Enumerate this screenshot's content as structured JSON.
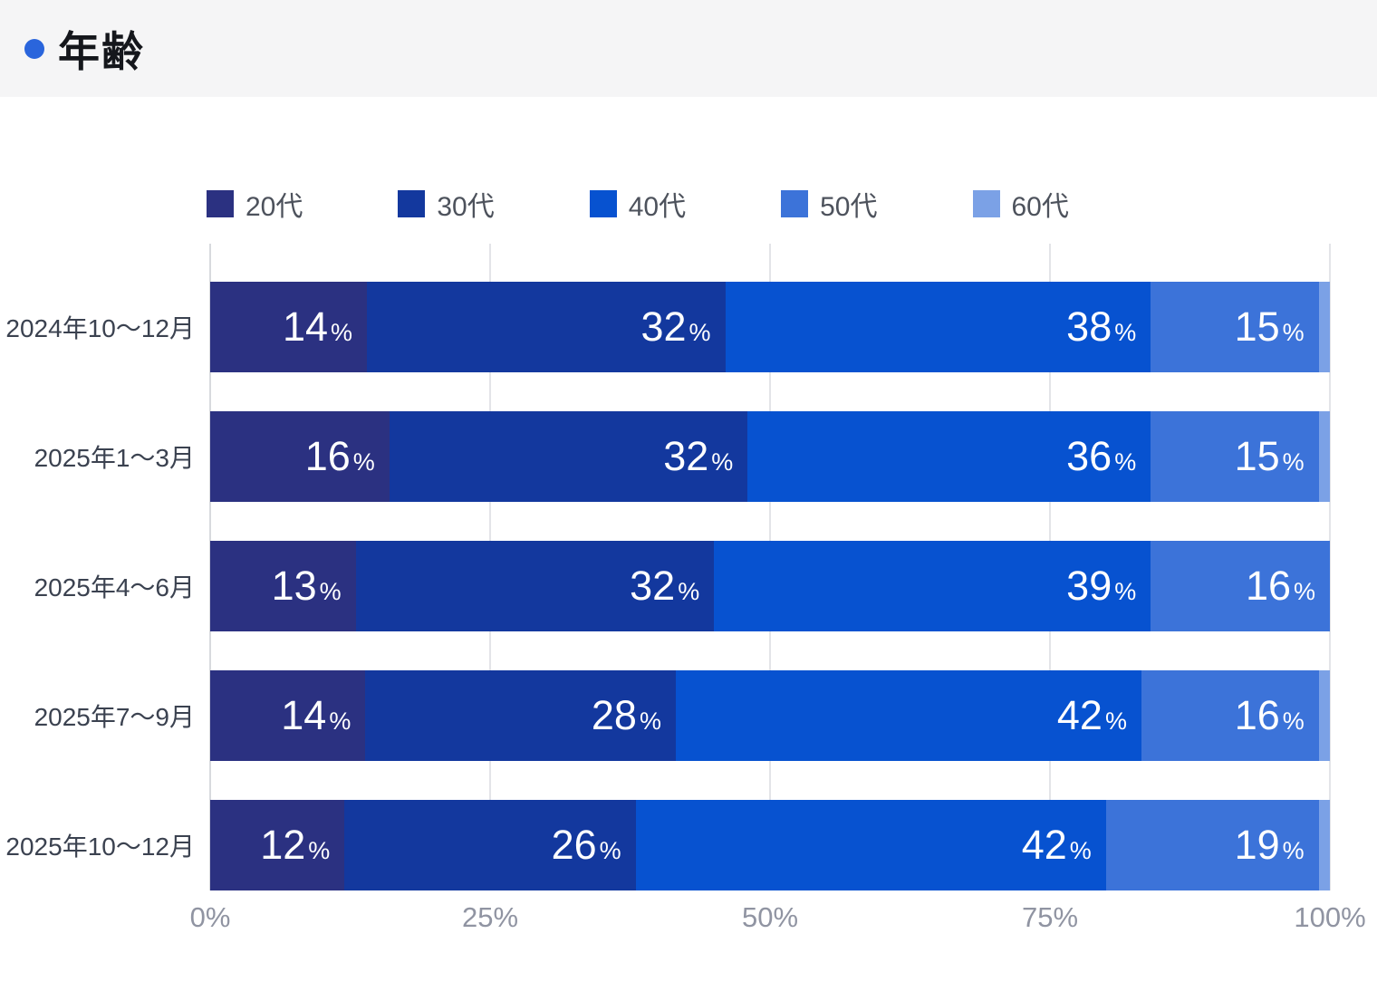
{
  "header": {
    "title": "年齢"
  },
  "accent_color": "#2a65dc",
  "chart_data": {
    "type": "bar",
    "orientation": "horizontal-stacked",
    "title": "年齢",
    "categories": [
      "2024年10〜12月",
      "2025年1〜3月",
      "2025年4〜6月",
      "2025年7〜9月",
      "2025年10〜12月"
    ],
    "series": [
      {
        "name": "20代",
        "color": "#2b3181",
        "values": [
          14,
          16,
          13,
          14,
          12
        ]
      },
      {
        "name": "30代",
        "color": "#13389e",
        "values": [
          32,
          32,
          32,
          28,
          26
        ]
      },
      {
        "name": "40代",
        "color": "#0752d0",
        "values": [
          38,
          36,
          39,
          42,
          42
        ]
      },
      {
        "name": "50代",
        "color": "#3c73d9",
        "values": [
          15,
          15,
          16,
          16,
          19
        ]
      },
      {
        "name": "60代",
        "color": "#7ba1e6",
        "values": [
          1,
          1,
          0,
          1,
          1
        ]
      }
    ],
    "x_ticks": [
      "0%",
      "25%",
      "50%",
      "75%",
      "100%"
    ],
    "xlim": [
      0,
      100
    ],
    "grid": "vertical",
    "legend_position": "top",
    "value_suffix": "%",
    "label_min_value": 5
  }
}
